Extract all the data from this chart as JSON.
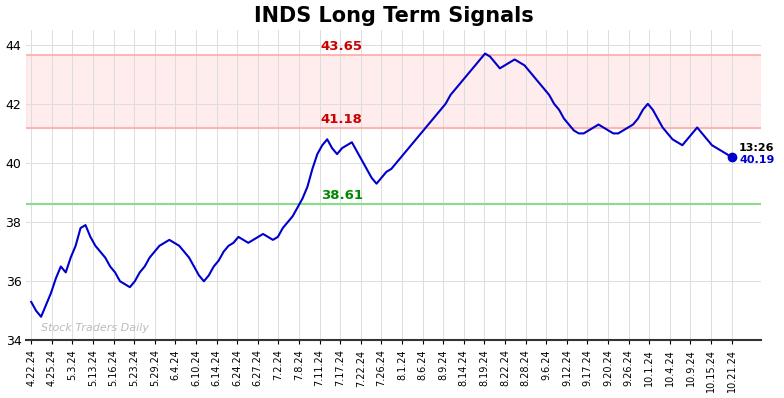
{
  "title": "INDS Long Term Signals",
  "title_fontsize": 15,
  "title_fontweight": "bold",
  "ylim": [
    34,
    44.5
  ],
  "yticks": [
    34,
    36,
    38,
    40,
    42,
    44
  ],
  "line_color": "#0000cc",
  "line_width": 1.5,
  "marker_color": "#0000cc",
  "hline_upper": 43.65,
  "hline_mid": 41.18,
  "hline_lower": 38.61,
  "hline_upper_color": "#ffaaaa",
  "hline_mid_color": "#ffaaaa",
  "hline_lower_color": "#88dd88",
  "hline_upper_label_color": "#cc0000",
  "hline_mid_label_color": "#cc0000",
  "hline_lower_label_color": "#008800",
  "watermark": "Stock Traders Daily",
  "watermark_color": "#bbbbbb",
  "last_label": "13:26",
  "last_value": 40.19,
  "last_label_color": "#000000",
  "last_value_color": "#0000cc",
  "background_color": "#ffffff",
  "grid_color": "#dddddd",
  "x_labels": [
    "4.22.24",
    "4.25.24",
    "5.3.24",
    "5.13.24",
    "5.16.24",
    "5.23.24",
    "5.29.24",
    "6.4.24",
    "6.10.24",
    "6.14.24",
    "6.24.24",
    "6.27.24",
    "7.2.24",
    "7.8.24",
    "7.11.24",
    "7.17.24",
    "7.22.24",
    "7.26.24",
    "8.1.24",
    "8.6.24",
    "8.9.24",
    "8.14.24",
    "8.19.24",
    "8.22.24",
    "8.28.24",
    "9.6.24",
    "9.12.24",
    "9.17.24",
    "9.20.24",
    "9.26.24",
    "10.1.24",
    "10.4.24",
    "10.9.24",
    "10.15.24",
    "10.21.24"
  ],
  "y_values": [
    35.3,
    35.0,
    34.8,
    35.2,
    35.6,
    36.1,
    36.5,
    36.3,
    36.8,
    37.2,
    37.8,
    37.9,
    37.5,
    37.2,
    37.0,
    36.8,
    36.5,
    36.3,
    36.0,
    35.9,
    35.8,
    36.0,
    36.3,
    36.5,
    36.8,
    37.0,
    37.2,
    37.3,
    37.4,
    37.3,
    37.2,
    37.0,
    36.8,
    36.5,
    36.2,
    36.0,
    36.2,
    36.5,
    36.7,
    37.0,
    37.2,
    37.3,
    37.5,
    37.4,
    37.3,
    37.4,
    37.5,
    37.6,
    37.5,
    37.4,
    37.5,
    37.8,
    38.0,
    38.2,
    38.5,
    38.8,
    39.2,
    39.8,
    40.3,
    40.6,
    40.8,
    40.5,
    40.3,
    40.5,
    40.6,
    40.7,
    40.4,
    40.1,
    39.8,
    39.5,
    39.3,
    39.5,
    39.7,
    39.8,
    40.0,
    40.2,
    40.4,
    40.6,
    40.8,
    41.0,
    41.2,
    41.4,
    41.6,
    41.8,
    42.0,
    42.3,
    42.5,
    42.7,
    42.9,
    43.1,
    43.3,
    43.5,
    43.7,
    43.6,
    43.4,
    43.2,
    43.3,
    43.4,
    43.5,
    43.4,
    43.3,
    43.1,
    42.9,
    42.7,
    42.5,
    42.3,
    42.0,
    41.8,
    41.5,
    41.3,
    41.1,
    41.0,
    41.0,
    41.1,
    41.2,
    41.3,
    41.2,
    41.1,
    41.0,
    41.0,
    41.1,
    41.2,
    41.3,
    41.5,
    41.8,
    42.0,
    41.8,
    41.5,
    41.2,
    41.0,
    40.8,
    40.7,
    40.6,
    40.8,
    41.0,
    41.2,
    41.0,
    40.8,
    40.6,
    40.5,
    40.4,
    40.3,
    40.19
  ]
}
